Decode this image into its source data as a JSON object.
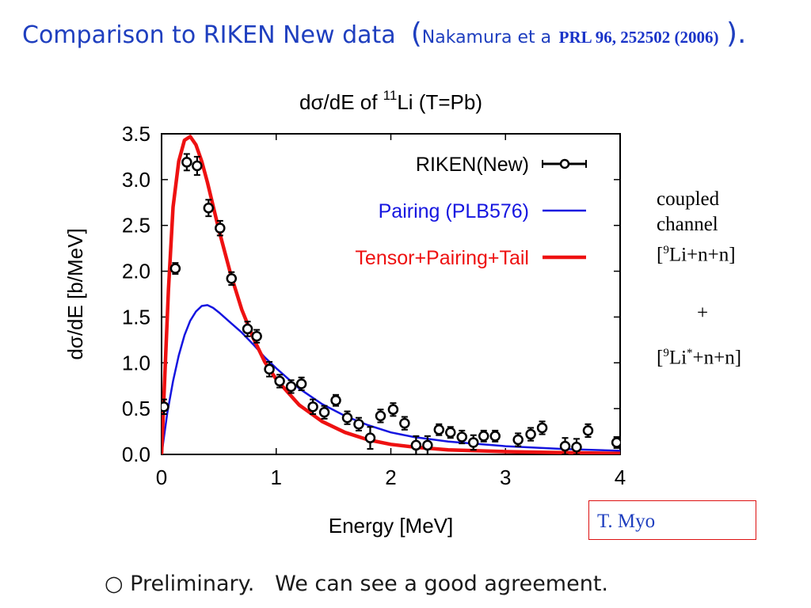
{
  "slide": {
    "title_main": "Comparison to RIKEN New data",
    "title_paren_open": "(",
    "title_ref_author": "Nakamura et a",
    "title_ref_journal": "PRL 96, 252502 (2006)",
    "title_paren_close": ").",
    "side_note": {
      "line1": "coupled",
      "line2": "channel",
      "line3_pre": "[",
      "line3_sup": "9",
      "line3_post": "Li+n+n]",
      "plus": "+",
      "line4_pre": "[",
      "line4_sup": "9",
      "line4_mid": "Li",
      "line4_sup2": "*",
      "line4_post": "+n+n]"
    },
    "author": "T. Myo",
    "footer_bullet": "○",
    "footer_text": "Preliminary.   We can see a good agreement."
  },
  "colors": {
    "title": "#1f3fbf",
    "pairing": "#1515e0",
    "tensor": "#ee1111",
    "riken": "#000000",
    "author_border": "#dd1111"
  },
  "chart_data": {
    "type": "line",
    "title": "dσ/dE of ¹¹Li (T=Pb)",
    "title_parts": {
      "pre": "dσ/dE of ",
      "sup": "11",
      "post": "Li (T=Pb)"
    },
    "xlabel": "Energy [MeV]",
    "ylabel": "dσ/dE [b/MeV]",
    "xlim": [
      0,
      4
    ],
    "ylim": [
      0,
      3.5
    ],
    "xticks": [
      0,
      1,
      2,
      3,
      4
    ],
    "yticks": [
      0.0,
      0.5,
      1.0,
      1.5,
      2.0,
      2.5,
      3.0,
      3.5
    ],
    "xtick_labels": [
      "0",
      "1",
      "2",
      "3",
      "4"
    ],
    "ytick_labels": [
      "0.0",
      "0.5",
      "1.0",
      "1.5",
      "2.0",
      "2.5",
      "3.0",
      "3.5"
    ],
    "grid": false,
    "legend_position": "top-right",
    "series": [
      {
        "name": "RIKEN(New)",
        "style": "points-errorbars",
        "points": [
          [
            0.02,
            0.52,
            0.08
          ],
          [
            0.12,
            2.03,
            0.06
          ],
          [
            0.22,
            3.19,
            0.09
          ],
          [
            0.31,
            3.15,
            0.1
          ],
          [
            0.41,
            2.69,
            0.09
          ],
          [
            0.51,
            2.47,
            0.08
          ],
          [
            0.61,
            1.92,
            0.07
          ],
          [
            0.75,
            1.37,
            0.08
          ],
          [
            0.83,
            1.29,
            0.07
          ],
          [
            0.94,
            0.93,
            0.08
          ],
          [
            1.03,
            0.8,
            0.07
          ],
          [
            1.13,
            0.74,
            0.07
          ],
          [
            1.22,
            0.77,
            0.07
          ],
          [
            1.32,
            0.52,
            0.08
          ],
          [
            1.42,
            0.46,
            0.07
          ],
          [
            1.52,
            0.59,
            0.06
          ],
          [
            1.62,
            0.4,
            0.07
          ],
          [
            1.72,
            0.33,
            0.07
          ],
          [
            1.82,
            0.18,
            0.12
          ],
          [
            1.91,
            0.42,
            0.07
          ],
          [
            2.02,
            0.49,
            0.07
          ],
          [
            2.12,
            0.34,
            0.07
          ],
          [
            2.22,
            0.1,
            0.1
          ],
          [
            2.32,
            0.1,
            0.1
          ],
          [
            2.42,
            0.27,
            0.06
          ],
          [
            2.52,
            0.24,
            0.06
          ],
          [
            2.62,
            0.19,
            0.07
          ],
          [
            2.72,
            0.13,
            0.08
          ],
          [
            2.81,
            0.2,
            0.06
          ],
          [
            2.91,
            0.2,
            0.06
          ],
          [
            3.11,
            0.16,
            0.07
          ],
          [
            3.22,
            0.22,
            0.07
          ],
          [
            3.32,
            0.29,
            0.07
          ],
          [
            3.52,
            0.09,
            0.09
          ],
          [
            3.62,
            0.08,
            0.09
          ],
          [
            3.72,
            0.26,
            0.07
          ],
          [
            3.97,
            0.13,
            0.06
          ]
        ]
      },
      {
        "name": "Pairing (PLB576)",
        "style": "line",
        "points": [
          [
            0,
            0
          ],
          [
            0.05,
            0.45
          ],
          [
            0.1,
            0.8
          ],
          [
            0.15,
            1.08
          ],
          [
            0.2,
            1.3
          ],
          [
            0.25,
            1.46
          ],
          [
            0.3,
            1.56
          ],
          [
            0.35,
            1.62
          ],
          [
            0.4,
            1.63
          ],
          [
            0.45,
            1.6
          ],
          [
            0.5,
            1.55
          ],
          [
            0.6,
            1.44
          ],
          [
            0.7,
            1.33
          ],
          [
            0.8,
            1.2
          ],
          [
            0.9,
            1.06
          ],
          [
            1.0,
            0.94
          ],
          [
            1.2,
            0.72
          ],
          [
            1.4,
            0.55
          ],
          [
            1.6,
            0.42
          ],
          [
            1.8,
            0.32
          ],
          [
            2.0,
            0.24
          ],
          [
            2.2,
            0.19
          ],
          [
            2.5,
            0.14
          ],
          [
            2.8,
            0.11
          ],
          [
            3.0,
            0.09
          ],
          [
            3.5,
            0.06
          ],
          [
            4.0,
            0.04
          ]
        ]
      },
      {
        "name": "Tensor+Pairing+Tail",
        "style": "line",
        "points": [
          [
            0,
            0
          ],
          [
            0.03,
            0.9
          ],
          [
            0.06,
            1.8
          ],
          [
            0.1,
            2.7
          ],
          [
            0.15,
            3.2
          ],
          [
            0.2,
            3.43
          ],
          [
            0.25,
            3.47
          ],
          [
            0.3,
            3.38
          ],
          [
            0.35,
            3.2
          ],
          [
            0.4,
            2.97
          ],
          [
            0.5,
            2.45
          ],
          [
            0.6,
            1.98
          ],
          [
            0.7,
            1.58
          ],
          [
            0.8,
            1.27
          ],
          [
            0.9,
            1.01
          ],
          [
            1.0,
            0.82
          ],
          [
            1.2,
            0.54
          ],
          [
            1.4,
            0.36
          ],
          [
            1.6,
            0.24
          ],
          [
            1.8,
            0.16
          ],
          [
            2.0,
            0.11
          ],
          [
            2.2,
            0.08
          ],
          [
            2.5,
            0.05
          ],
          [
            3.0,
            0.03
          ],
          [
            3.5,
            0.02
          ],
          [
            4.0,
            0.01
          ]
        ]
      }
    ]
  }
}
